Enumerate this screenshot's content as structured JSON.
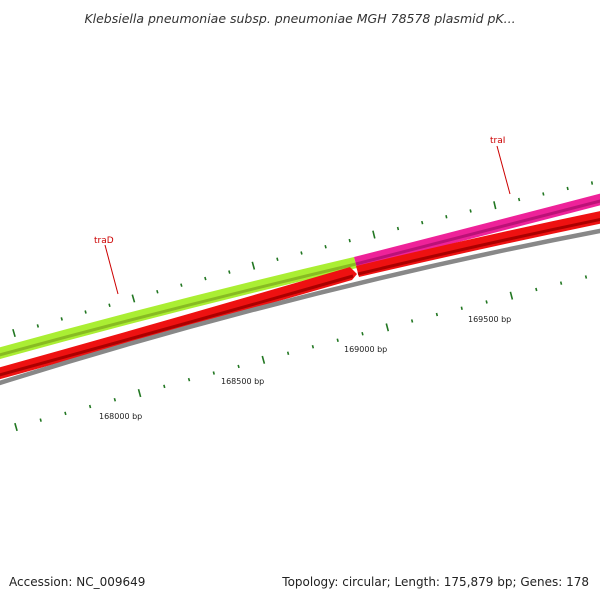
{
  "title": "Klebsiella pneumoniae subsp. pneumoniae MGH 78578 plasmid pK...",
  "footer": {
    "accession": "Accession: NC_009649",
    "summary": "Topology: circular; Length: 175,879 bp; Genes: 178"
  },
  "colors": {
    "traD": "#aaee33",
    "traI": "#ee2299",
    "cds": "#ee1111",
    "backbone": "#888888",
    "ticks": "#227722",
    "gene_label": "#cc0000"
  },
  "genes": [
    {
      "name": "traD",
      "label": "traD",
      "track": "gene"
    },
    {
      "name": "traI",
      "label": "traI",
      "track": "gene"
    }
  ],
  "ruler_labels": [
    {
      "bp": 168000,
      "label": "168000 bp"
    },
    {
      "bp": 168500,
      "label": "168500 bp"
    },
    {
      "bp": 169000,
      "label": "169000 bp"
    },
    {
      "bp": 169500,
      "label": "169500 bp"
    }
  ]
}
